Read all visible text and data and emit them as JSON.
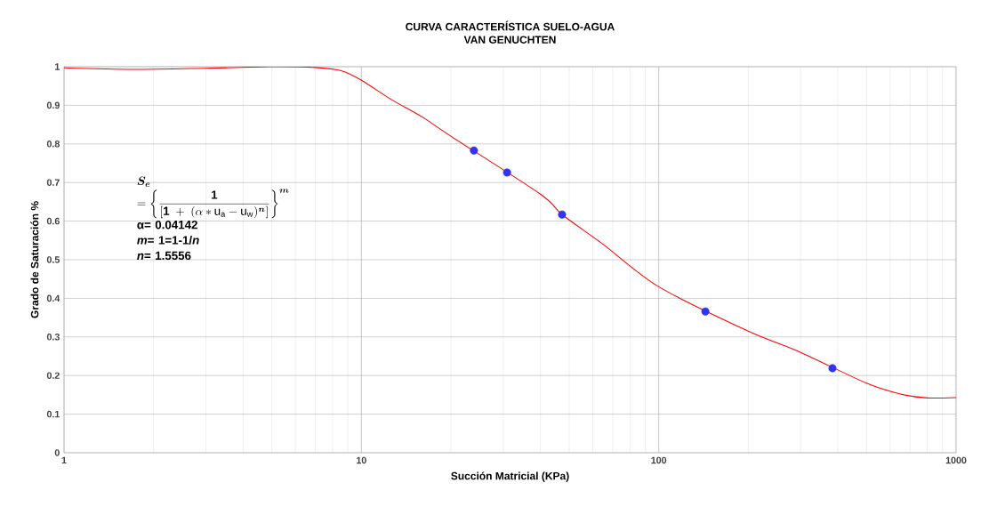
{
  "chart_data": {
    "type": "line",
    "title": "CURVA CARACTERÍSTICA SUELO-AGUA",
    "subtitle": "VAN GENUCHTEN",
    "xlabel": "Succión Matricial (KPa)",
    "ylabel": "Grado de Saturación %",
    "log": "x",
    "grid": true,
    "xlim": [
      1,
      1000
    ],
    "ylim": [
      0,
      1
    ],
    "xticks": [
      1,
      10,
      100,
      1000
    ],
    "yticks": [
      0,
      0.1,
      0.2,
      0.3,
      0.4,
      0.5,
      0.6,
      0.7,
      0.8,
      0.9,
      1
    ],
    "series": [
      {
        "color": "#ff0000",
        "marker": "none",
        "x": [
          1,
          1.7,
          3,
          5,
          7,
          8.5,
          10,
          12.6,
          16,
          20,
          40,
          47.3,
          65,
          100,
          200,
          300,
          500,
          650,
          800,
          1000
        ],
        "values": [
          0.997,
          0.993,
          0.996,
          1.0,
          0.998,
          0.99,
          0.965,
          0.915,
          0.87,
          0.82,
          0.67,
          0.617,
          0.54,
          0.43,
          0.315,
          0.26,
          0.18,
          0.152,
          0.142,
          0.143
        ]
      },
      {
        "type": "scatter",
        "color": "#3333ee",
        "marker": "circle",
        "x": [
          23.9,
          30.9,
          47.3,
          143.5,
          384
        ],
        "values": [
          0.783,
          0.726,
          0.617,
          0.366,
          0.219
        ]
      }
    ],
    "annotations": [
      "\\boldsymbol{S_e}",
      "=\\left\\{\\dfrac{\\mathbf{1}}{\\left[\\mathbf{1}\\;+\\;(\\alpha*\\mathrm{u_a}-\\mathrm{u_w})^{\\boldsymbol{n}}\\right]}\\right\\}^{\\boldsymbol{m}}",
      "α= 0.04142",
      "*m*= 1=1-1/*n*",
      "*n*= 1.5556"
    ]
  }
}
